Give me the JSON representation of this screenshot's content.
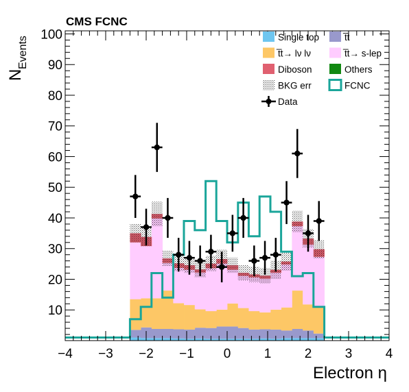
{
  "chart_data": {
    "type": "bar",
    "stacked": true,
    "title": "CMS FCNC",
    "xlabel": "Electron η",
    "ylabel_main": "N",
    "ylabel_sub": "Events",
    "xlim": [
      -4,
      4
    ],
    "ylim": [
      0,
      101
    ],
    "x_ticks": [
      "−4",
      "−3",
      "−2",
      "−1",
      "0",
      "1",
      "2",
      "3",
      "4"
    ],
    "x_tick_values": [
      -4,
      -3,
      -2,
      -1,
      0,
      1,
      2,
      3,
      4
    ],
    "y_ticks": [
      "10",
      "20",
      "30",
      "40",
      "50",
      "60",
      "70",
      "80",
      "90",
      "100"
    ],
    "y_tick_values": [
      10,
      20,
      30,
      40,
      50,
      60,
      70,
      80,
      90,
      100
    ],
    "grid": false,
    "legend_position": "top-right",
    "bin_edges": [
      -2.4,
      -2.133,
      -1.867,
      -1.6,
      -1.333,
      -1.067,
      -0.8,
      -0.533,
      -0.267,
      0.0,
      0.267,
      0.533,
      0.8,
      1.067,
      1.333,
      1.6,
      1.867,
      2.133,
      2.4
    ],
    "series": [
      {
        "name": "Single top",
        "color": "#6ec6f0",
        "values": [
          1.0,
          0.8,
          0.8,
          0.8,
          0.7,
          0.6,
          0.7,
          0.6,
          0.6,
          0.6,
          0.6,
          0.6,
          0.7,
          0.6,
          0.8,
          0.8,
          0.8,
          0.8
        ]
      },
      {
        "name": "t̅t",
        "color": "#9999cc",
        "values": [
          2.5,
          3.5,
          3.0,
          3.0,
          3.0,
          3.0,
          3.5,
          3.5,
          4.0,
          4.0,
          3.5,
          3.0,
          3.0,
          3.0,
          2.5,
          3.0,
          2.5,
          1.5
        ]
      },
      {
        "name": "t̅t→ lν lν",
        "color": "#fdc766",
        "values": [
          10.0,
          9.5,
          10.0,
          12.5,
          8.5,
          8.0,
          6.0,
          5.5,
          5.5,
          7.5,
          6.5,
          6.0,
          5.5,
          6.5,
          7.5,
          12.5,
          8.5,
          8.5
        ]
      },
      {
        "name": "t̅t→ s-lep",
        "color": "#ffccff",
        "values": [
          18.5,
          17.0,
          26.0,
          9.0,
          11.5,
          11.5,
          12.0,
          14.0,
          15.0,
          11.0,
          10.5,
          11.0,
          11.0,
          12.0,
          14.0,
          21.0,
          19.5,
          16.5
        ]
      },
      {
        "name": "Diboson",
        "color": "#e06070",
        "values": [
          3.0,
          3.0,
          1.5,
          1.5,
          1.5,
          1.5,
          1.0,
          1.5,
          1.5,
          1.5,
          1.0,
          1.0,
          1.0,
          1.0,
          1.0,
          1.5,
          2.0,
          2.5
        ]
      },
      {
        "name": "Others",
        "color": "#118811",
        "values": [
          0,
          0,
          0,
          0,
          0,
          0,
          0,
          0,
          0,
          0,
          0,
          0,
          0,
          0,
          0,
          0,
          0,
          0
        ]
      }
    ],
    "bkg_err": [
      3.0,
      3.0,
      4.0,
      2.5,
      2.5,
      2.5,
      2.5,
      2.5,
      3.0,
      2.5,
      2.5,
      2.5,
      2.5,
      3.0,
      3.0,
      3.5,
      3.0,
      3.0
    ],
    "fcnc": {
      "name": "FCNC",
      "color": "#1aa59a",
      "edges": [
        -4.0,
        -2.4,
        -2.133,
        -1.867,
        -1.6,
        -1.333,
        -1.067,
        -0.8,
        -0.533,
        -0.267,
        0.0,
        0.267,
        0.533,
        0.8,
        1.067,
        1.333,
        1.6,
        1.867,
        2.133,
        2.4,
        4.0
      ],
      "values": [
        1,
        7,
        11,
        22,
        14,
        28,
        39,
        36,
        52,
        39,
        32,
        45,
        34,
        47,
        42,
        29,
        21,
        22,
        11,
        1
      ]
    },
    "data_points": {
      "name": "Data",
      "x": [
        -2.267,
        -2.0,
        -1.733,
        -1.467,
        -1.2,
        -0.933,
        -0.667,
        -0.4,
        -0.133,
        0.133,
        0.4,
        0.667,
        0.933,
        1.2,
        1.467,
        1.733,
        2.0,
        2.267
      ],
      "y": [
        47,
        37,
        63,
        40,
        28,
        27,
        26,
        29,
        24,
        35,
        40,
        26,
        27,
        28,
        45,
        61,
        35,
        39
      ],
      "yerr": [
        7,
        6,
        8,
        6.5,
        5.5,
        5.5,
        5,
        5.5,
        5,
        6,
        6.5,
        5,
        5.5,
        5.5,
        7,
        8,
        6,
        6.5
      ]
    },
    "legend": [
      {
        "label": "Single top",
        "kind": "fill",
        "color": "#6ec6f0"
      },
      {
        "label": "t̅t",
        "kind": "fill",
        "color": "#9999cc"
      },
      {
        "label": "t̅t→ lν lν",
        "kind": "fill",
        "color": "#fdc766"
      },
      {
        "label": "t̅t→ s-lep",
        "kind": "fill",
        "color": "#ffccff"
      },
      {
        "label": "Diboson",
        "kind": "fill",
        "color": "#e06070"
      },
      {
        "label": "Others",
        "kind": "fill",
        "color": "#118811"
      },
      {
        "label": "BKG err",
        "kind": "hatch",
        "color": "#000000"
      },
      {
        "label": "FCNC",
        "kind": "line",
        "color": "#1aa59a"
      },
      {
        "label": "Data",
        "kind": "marker",
        "color": "#000000"
      }
    ]
  }
}
